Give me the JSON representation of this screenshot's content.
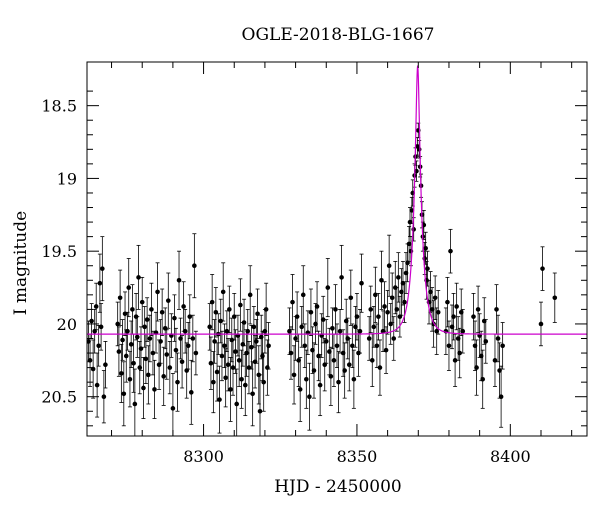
{
  "chart_data": {
    "type": "scatter",
    "title": "OGLE-2018-BLG-1667",
    "xlabel": "HJD - 2450000",
    "ylabel": "I magnitude",
    "xlim": [
      8262,
      8425
    ],
    "ylim": [
      20.77,
      18.2
    ],
    "y_inverted": true,
    "grid": false,
    "x_ticks": [
      8300,
      8350,
      8400
    ],
    "y_ticks": [
      18.5,
      19,
      19.5,
      20,
      20.5
    ],
    "model": {
      "t0": 8369.8,
      "tE": 2.8,
      "u0": 0.185,
      "baseline": 20.07,
      "color": "#cc00cc"
    },
    "points_color": "#000000",
    "points": [
      [
        8262.5,
        20.12,
        0.14
      ],
      [
        8263.0,
        20.25,
        0.18
      ],
      [
        8263.5,
        19.98,
        0.12
      ],
      [
        8264.0,
        20.31,
        0.2
      ],
      [
        8264.5,
        20.05,
        0.15
      ],
      [
        8265.0,
        19.88,
        0.16
      ],
      [
        8265.3,
        20.42,
        0.22
      ],
      [
        8265.8,
        20.15,
        0.14
      ],
      [
        8266.2,
        19.72,
        0.2
      ],
      [
        8266.6,
        20.02,
        0.16
      ],
      [
        8267.0,
        19.62,
        0.22
      ],
      [
        8267.5,
        20.5,
        0.18
      ],
      [
        8268.0,
        20.28,
        0.16
      ],
      [
        8272.0,
        20.0,
        0.15
      ],
      [
        8272.4,
        20.19,
        0.17
      ],
      [
        8272.8,
        19.82,
        0.19
      ],
      [
        8273.2,
        20.34,
        0.2
      ],
      [
        8273.6,
        20.11,
        0.14
      ],
      [
        8274.0,
        20.48,
        0.22
      ],
      [
        8274.4,
        19.93,
        0.15
      ],
      [
        8274.8,
        20.22,
        0.18
      ],
      [
        8275.2,
        20.05,
        0.13
      ],
      [
        8275.6,
        19.75,
        0.2
      ],
      [
        8276.0,
        20.38,
        0.19
      ],
      [
        8276.4,
        20.14,
        0.16
      ],
      [
        8276.8,
        19.9,
        0.17
      ],
      [
        8277.2,
        20.27,
        0.2
      ],
      [
        8277.6,
        20.55,
        0.24
      ],
      [
        8278.0,
        19.95,
        0.16
      ],
      [
        8278.4,
        20.09,
        0.14
      ],
      [
        8278.8,
        19.68,
        0.22
      ],
      [
        8279.2,
        20.3,
        0.18
      ],
      [
        8279.6,
        20.17,
        0.15
      ],
      [
        8280.0,
        19.85,
        0.17
      ],
      [
        8280.4,
        20.44,
        0.21
      ],
      [
        8280.8,
        20.02,
        0.14
      ],
      [
        8281.2,
        20.24,
        0.17
      ],
      [
        8281.6,
        19.97,
        0.15
      ],
      [
        8282.0,
        20.35,
        0.2
      ],
      [
        8282.5,
        20.1,
        0.16
      ],
      [
        8283.0,
        19.9,
        0.18
      ],
      [
        8283.5,
        20.2,
        0.15
      ],
      [
        8284.0,
        20.45,
        0.2
      ],
      [
        8284.5,
        20.06,
        0.14
      ],
      [
        8285.0,
        19.78,
        0.2
      ],
      [
        8285.5,
        20.28,
        0.17
      ],
      [
        8286.0,
        20.12,
        0.15
      ],
      [
        8286.5,
        19.92,
        0.16
      ],
      [
        8287.0,
        20.36,
        0.2
      ],
      [
        8287.5,
        20.03,
        0.14
      ],
      [
        8288.0,
        20.21,
        0.17
      ],
      [
        8288.5,
        19.84,
        0.19
      ],
      [
        8289.0,
        20.3,
        0.18
      ],
      [
        8289.5,
        20.08,
        0.15
      ],
      [
        8290.0,
        20.58,
        0.24
      ],
      [
        8290.5,
        19.96,
        0.16
      ],
      [
        8291.0,
        20.18,
        0.15
      ],
      [
        8291.5,
        20.4,
        0.2
      ],
      [
        8292.0,
        19.7,
        0.2
      ],
      [
        8292.5,
        20.1,
        0.14
      ],
      [
        8293.0,
        20.26,
        0.18
      ],
      [
        8293.5,
        19.88,
        0.17
      ],
      [
        8294.0,
        20.05,
        0.15
      ],
      [
        8294.5,
        20.32,
        0.19
      ],
      [
        8295.0,
        20.15,
        0.16
      ],
      [
        8295.5,
        19.95,
        0.15
      ],
      [
        8296.0,
        20.47,
        0.22
      ],
      [
        8296.5,
        20.1,
        0.16
      ],
      [
        8297.0,
        19.6,
        0.22
      ],
      [
        8297.5,
        20.2,
        0.15
      ],
      [
        8302.0,
        20.02,
        0.16
      ],
      [
        8302.4,
        20.27,
        0.18
      ],
      [
        8302.8,
        19.85,
        0.19
      ],
      [
        8303.2,
        20.4,
        0.21
      ],
      [
        8303.6,
        20.12,
        0.15
      ],
      [
        8304.0,
        19.92,
        0.17
      ],
      [
        8304.4,
        20.33,
        0.2
      ],
      [
        8304.8,
        20.07,
        0.14
      ],
      [
        8305.2,
        20.52,
        0.23
      ],
      [
        8305.6,
        19.98,
        0.15
      ],
      [
        8306.0,
        20.22,
        0.17
      ],
      [
        8306.4,
        19.78,
        0.2
      ],
      [
        8306.8,
        20.15,
        0.15
      ],
      [
        8307.2,
        20.37,
        0.2
      ],
      [
        8307.6,
        20.05,
        0.14
      ],
      [
        8308.0,
        20.28,
        0.18
      ],
      [
        8308.4,
        19.9,
        0.16
      ],
      [
        8308.8,
        20.45,
        0.22
      ],
      [
        8309.2,
        20.11,
        0.15
      ],
      [
        8309.6,
        20.3,
        0.19
      ],
      [
        8310.0,
        19.95,
        0.16
      ],
      [
        8310.4,
        20.19,
        0.15
      ],
      [
        8310.8,
        20.55,
        0.24
      ],
      [
        8311.2,
        20.08,
        0.14
      ],
      [
        8311.6,
        20.25,
        0.18
      ],
      [
        8312.0,
        19.87,
        0.18
      ],
      [
        8312.4,
        20.38,
        0.2
      ],
      [
        8312.8,
        20.14,
        0.15
      ],
      [
        8313.2,
        19.99,
        0.16
      ],
      [
        8313.6,
        20.42,
        0.21
      ],
      [
        8314.0,
        20.2,
        0.16
      ],
      [
        8314.4,
        20.05,
        0.15
      ],
      [
        8314.8,
        20.3,
        0.18
      ],
      [
        8315.2,
        19.8,
        0.2
      ],
      [
        8315.6,
        20.16,
        0.15
      ],
      [
        8316.0,
        20.48,
        0.22
      ],
      [
        8316.4,
        20.02,
        0.14
      ],
      [
        8316.8,
        20.26,
        0.18
      ],
      [
        8317.2,
        20.12,
        0.15
      ],
      [
        8317.6,
        19.93,
        0.17
      ],
      [
        8318.0,
        20.35,
        0.2
      ],
      [
        8318.4,
        20.6,
        0.25
      ],
      [
        8318.8,
        20.09,
        0.15
      ],
      [
        8319.2,
        20.22,
        0.17
      ],
      [
        8319.6,
        20.4,
        0.2
      ],
      [
        8320.0,
        20.05,
        0.15
      ],
      [
        8320.4,
        19.9,
        0.18
      ],
      [
        8320.8,
        20.3,
        0.19
      ],
      [
        8321.2,
        20.15,
        0.16
      ],
      [
        8328.0,
        20.05,
        0.16
      ],
      [
        8328.5,
        20.2,
        0.18
      ],
      [
        8329.0,
        19.85,
        0.19
      ],
      [
        8329.5,
        20.35,
        0.2
      ],
      [
        8330.0,
        20.1,
        0.15
      ],
      [
        8330.5,
        19.95,
        0.17
      ],
      [
        8331.0,
        20.25,
        0.18
      ],
      [
        8331.5,
        20.45,
        0.22
      ],
      [
        8332.0,
        20.02,
        0.14
      ],
      [
        8332.5,
        19.8,
        0.2
      ],
      [
        8333.0,
        20.15,
        0.15
      ],
      [
        8333.5,
        20.38,
        0.2
      ],
      [
        8334.0,
        20.06,
        0.15
      ],
      [
        8334.5,
        20.5,
        0.23
      ],
      [
        8335.0,
        19.92,
        0.16
      ],
      [
        8335.5,
        20.18,
        0.16
      ],
      [
        8336.0,
        20.32,
        0.19
      ],
      [
        8336.5,
        20.0,
        0.14
      ],
      [
        8337.0,
        19.88,
        0.17
      ],
      [
        8337.5,
        20.22,
        0.17
      ],
      [
        8338.0,
        20.42,
        0.21
      ],
      [
        8338.5,
        20.08,
        0.15
      ],
      [
        8339.0,
        19.97,
        0.16
      ],
      [
        8339.5,
        20.28,
        0.18
      ],
      [
        8340.0,
        20.12,
        0.15
      ],
      [
        8340.5,
        19.75,
        0.2
      ],
      [
        8341.0,
        20.19,
        0.16
      ],
      [
        8341.5,
        20.36,
        0.2
      ],
      [
        8342.0,
        20.03,
        0.14
      ],
      [
        8342.5,
        20.25,
        0.18
      ],
      [
        8343.0,
        19.9,
        0.17
      ],
      [
        8343.5,
        20.15,
        0.15
      ],
      [
        8344.0,
        20.4,
        0.21
      ],
      [
        8344.5,
        20.05,
        0.15
      ],
      [
        8345.0,
        19.68,
        0.22
      ],
      [
        8345.5,
        20.2,
        0.16
      ],
      [
        8346.0,
        20.32,
        0.19
      ],
      [
        8346.5,
        19.98,
        0.15
      ],
      [
        8347.0,
        20.1,
        0.14
      ],
      [
        8347.5,
        20.28,
        0.18
      ],
      [
        8348.0,
        19.82,
        0.19
      ],
      [
        8348.5,
        20.15,
        0.15
      ],
      [
        8349.0,
        20.38,
        0.2
      ],
      [
        8349.5,
        20.02,
        0.14
      ],
      [
        8350.0,
        19.95,
        0.16
      ],
      [
        8350.5,
        20.2,
        0.16
      ],
      [
        8351.0,
        20.05,
        0.15
      ],
      [
        8351.5,
        19.72,
        0.2
      ],
      [
        8354.0,
        20.1,
        0.15
      ],
      [
        8354.5,
        19.9,
        0.16
      ],
      [
        8355.0,
        20.25,
        0.18
      ],
      [
        8355.5,
        20.02,
        0.14
      ],
      [
        8356.0,
        19.8,
        0.19
      ],
      [
        8356.5,
        20.15,
        0.15
      ],
      [
        8357.0,
        19.95,
        0.16
      ],
      [
        8357.5,
        20.3,
        0.19
      ],
      [
        8358.0,
        19.7,
        0.2
      ],
      [
        8358.5,
        20.05,
        0.14
      ],
      [
        8359.0,
        19.88,
        0.17
      ],
      [
        8359.5,
        20.18,
        0.16
      ],
      [
        8360.0,
        19.92,
        0.15
      ],
      [
        8360.5,
        19.6,
        0.21
      ],
      [
        8361.0,
        20.0,
        0.14
      ],
      [
        8361.5,
        19.82,
        0.17
      ],
      [
        8362.0,
        20.1,
        0.15
      ],
      [
        8362.5,
        19.75,
        0.18
      ],
      [
        8363.0,
        19.9,
        0.15
      ],
      [
        8363.5,
        19.68,
        0.17
      ],
      [
        8364.0,
        19.95,
        0.14
      ],
      [
        8364.5,
        19.78,
        0.16
      ],
      [
        8365.0,
        19.72,
        0.15
      ],
      [
        8365.5,
        19.85,
        0.14
      ],
      [
        8366.0,
        19.65,
        0.14
      ],
      [
        8366.5,
        19.58,
        0.13
      ],
      [
        8367.0,
        19.45,
        0.12
      ],
      [
        8367.3,
        19.3,
        0.1
      ],
      [
        8367.6,
        19.5,
        0.1
      ],
      [
        8367.9,
        19.22,
        0.09
      ],
      [
        8368.2,
        19.1,
        0.09
      ],
      [
        8368.5,
        19.35,
        0.08
      ],
      [
        8368.8,
        18.98,
        0.08
      ],
      [
        8369.1,
        18.85,
        0.06
      ],
      [
        8369.4,
        18.95,
        0.07
      ],
      [
        8369.7,
        18.78,
        0.06
      ],
      [
        8370.0,
        18.67,
        0.05
      ],
      [
        8370.3,
        18.8,
        0.06
      ],
      [
        8370.6,
        18.92,
        0.07
      ],
      [
        8370.9,
        19.05,
        0.08
      ],
      [
        8371.2,
        19.25,
        0.09
      ],
      [
        8371.5,
        19.4,
        0.1
      ],
      [
        8371.8,
        19.32,
        0.1
      ],
      [
        8372.1,
        19.55,
        0.11
      ],
      [
        8372.4,
        19.48,
        0.11
      ],
      [
        8372.7,
        19.7,
        0.13
      ],
      [
        8373.0,
        19.62,
        0.12
      ],
      [
        8373.5,
        19.85,
        0.15
      ],
      [
        8374.0,
        19.78,
        0.14
      ],
      [
        8374.5,
        19.9,
        0.15
      ],
      [
        8375.0,
        20.0,
        0.16
      ],
      [
        8375.5,
        19.82,
        0.15
      ],
      [
        8376.0,
        20.05,
        0.16
      ],
      [
        8376.5,
        19.92,
        0.15
      ],
      [
        8379.0,
        20.05,
        0.16
      ],
      [
        8379.5,
        19.85,
        0.17
      ],
      [
        8380.0,
        20.15,
        0.17
      ],
      [
        8380.5,
        19.5,
        0.15
      ],
      [
        8381.0,
        20.02,
        0.15
      ],
      [
        8381.5,
        19.95,
        0.16
      ],
      [
        8382.0,
        20.25,
        0.18
      ],
      [
        8382.5,
        19.88,
        0.16
      ],
      [
        8383.0,
        20.1,
        0.15
      ],
      [
        8383.5,
        20.2,
        0.17
      ],
      [
        8384.0,
        19.92,
        0.16
      ],
      [
        8384.5,
        20.05,
        0.15
      ],
      [
        8388.0,
        19.95,
        0.16
      ],
      [
        8388.5,
        20.15,
        0.17
      ],
      [
        8389.0,
        20.3,
        0.19
      ],
      [
        8389.5,
        19.9,
        0.16
      ],
      [
        8390.0,
        20.08,
        0.15
      ],
      [
        8390.5,
        20.22,
        0.17
      ],
      [
        8391.0,
        20.38,
        0.2
      ],
      [
        8391.5,
        19.98,
        0.16
      ],
      [
        8392.0,
        20.12,
        0.15
      ],
      [
        8395.0,
        20.25,
        0.18
      ],
      [
        8395.5,
        19.9,
        0.17
      ],
      [
        8396.0,
        20.1,
        0.16
      ],
      [
        8396.5,
        20.32,
        0.19
      ],
      [
        8397.0,
        20.5,
        0.21
      ],
      [
        8397.5,
        20.15,
        0.16
      ],
      [
        8410.0,
        20.0,
        0.15
      ],
      [
        8410.5,
        19.62,
        0.15
      ],
      [
        8414.5,
        19.82,
        0.17
      ]
    ]
  }
}
